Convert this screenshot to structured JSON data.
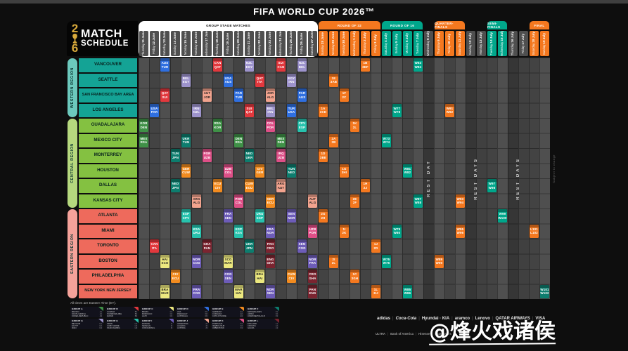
{
  "title": "FIFA WORLD CUP 2026™",
  "logo": {
    "year_top": "2",
    "year_bottom": "6",
    "line1": "MATCH",
    "line2": "SCHEDULE"
  },
  "note": "All times are Eastern Time (ET).",
  "side_note": "Subject to change",
  "watermark": "@烽火戏诸侯",
  "regions": [
    {
      "name": "WESTERN REGION",
      "strip_color": "#6cc9bd",
      "city_color": "#14a395",
      "cities": [
        "VANCOUVER",
        "SEATTLE",
        "SAN FRANCISCO BAY AREA",
        "LOS ANGELES"
      ]
    },
    {
      "name": "CENTRAL REGION",
      "strip_color": "#b6d87e",
      "city_color": "#84c141",
      "cities": [
        "GUADALAJARA",
        "MEXICO CITY",
        "MONTERREY",
        "HOUSTON",
        "DALLAS",
        "KANSAS CITY"
      ]
    },
    {
      "name": "EASTERN REGION",
      "strip_color": "#f5a29a",
      "city_color": "#ee6a5c",
      "cities": [
        "ATLANTA",
        "MIAMI",
        "TORONTO",
        "BOSTON",
        "PHILADELPHIA",
        "NEW YORK NEW JERSEY"
      ]
    }
  ],
  "phases": [
    {
      "label": "GROUP STAGE MATCHES",
      "start": 0,
      "end": 16,
      "bg": "#ffffff",
      "fg": "#111111"
    },
    {
      "label": "ROUND OF 32",
      "start": 17,
      "end": 22,
      "bg": "#f4781f",
      "fg": "#ffffff"
    },
    {
      "label": "ROUND OF 16",
      "start": 23,
      "end": 26,
      "bg": "#00a78b",
      "fg": "#ffffff"
    },
    {
      "label": "QUARTER-FINALS",
      "start": 28,
      "end": 30,
      "bg": "#f4781f",
      "fg": "#ffffff"
    },
    {
      "label": "SEMI-FINALS",
      "start": 33,
      "end": 34,
      "bg": "#00a78b",
      "fg": "#ffffff"
    },
    {
      "label": "FINAL",
      "start": 37,
      "end": 38,
      "bg": "#f4781f",
      "fg": "#ffffff"
    }
  ],
  "columns": [
    {
      "day": "Thursday",
      "date": "11 June",
      "type": "GS"
    },
    {
      "day": "Friday",
      "date": "12 June",
      "type": "GS"
    },
    {
      "day": "Saturday",
      "date": "13 June",
      "type": "GS"
    },
    {
      "day": "Sunday",
      "date": "14 June",
      "type": "GS"
    },
    {
      "day": "Monday",
      "date": "15 June",
      "type": "GS"
    },
    {
      "day": "Tuesday",
      "date": "16 June",
      "type": "GS"
    },
    {
      "day": "Wednesday",
      "date": "17 June",
      "type": "GS"
    },
    {
      "day": "Thursday",
      "date": "18 June",
      "type": "GS"
    },
    {
      "day": "Friday",
      "date": "19 June",
      "type": "GS"
    },
    {
      "day": "Saturday",
      "date": "20 June",
      "type": "GS"
    },
    {
      "day": "Sunday",
      "date": "21 June",
      "type": "GS"
    },
    {
      "day": "Monday",
      "date": "22 June",
      "type": "GS"
    },
    {
      "day": "Tuesday",
      "date": "23 June",
      "type": "GS"
    },
    {
      "day": "Wednesday",
      "date": "24 June",
      "type": "GS"
    },
    {
      "day": "Thursday",
      "date": "25 June",
      "type": "GS"
    },
    {
      "day": "Friday",
      "date": "26 June",
      "type": "GS"
    },
    {
      "day": "Saturday",
      "date": "27 June",
      "type": "GS"
    },
    {
      "day": "Sunday",
      "date": "28 June",
      "type": "R32"
    },
    {
      "day": "Monday",
      "date": "29 June",
      "type": "R32"
    },
    {
      "day": "Tuesday",
      "date": "30 June",
      "type": "R32"
    },
    {
      "day": "Wednesday",
      "date": "1 July",
      "type": "R32"
    },
    {
      "day": "Thursday",
      "date": "2 July",
      "type": "R32"
    },
    {
      "day": "Friday",
      "date": "3 July",
      "type": "R32"
    },
    {
      "day": "Saturday",
      "date": "4 July",
      "type": "R16"
    },
    {
      "day": "Sunday",
      "date": "5 July",
      "type": "R16"
    },
    {
      "day": "Monday",
      "date": "6 July",
      "type": "R16"
    },
    {
      "day": "Tuesday",
      "date": "7 July",
      "type": "R16"
    },
    {
      "day": "Wednesday",
      "date": "8 July",
      "type": "REST"
    },
    {
      "day": "Thursday",
      "date": "9 July",
      "type": "QF"
    },
    {
      "day": "Friday",
      "date": "10 July",
      "type": "QF"
    },
    {
      "day": "Saturday",
      "date": "11 July",
      "type": "QF"
    },
    {
      "day": "Sunday",
      "date": "12 July",
      "type": "REST"
    },
    {
      "day": "Monday",
      "date": "13 July",
      "type": "REST"
    },
    {
      "day": "Tuesday",
      "date": "14 July",
      "type": "SF"
    },
    {
      "day": "Wednesday",
      "date": "15 July",
      "type": "SF"
    },
    {
      "day": "Thursday",
      "date": "16 July",
      "type": "REST"
    },
    {
      "day": "Friday",
      "date": "17 July",
      "type": "REST"
    },
    {
      "day": "Saturday",
      "date": "18 July",
      "type": "FINAL"
    },
    {
      "day": "Sunday",
      "date": "19 July",
      "type": "FINAL"
    }
  ],
  "rest_bands": [
    {
      "start": 27,
      "end": 27,
      "label": "REST DAY"
    },
    {
      "start": 31,
      "end": 32,
      "label": "REST DAYS"
    },
    {
      "start": 35,
      "end": 36,
      "label": "REST DAYS"
    }
  ],
  "group_colors": {
    "A": "#3f9147",
    "B": "#e2383d",
    "C": "#ece87f",
    "D": "#2f6fe0",
    "E": "#f28b1f",
    "F": "#0d7d6e",
    "G": "#9d93cc",
    "H": "#27c2ad",
    "I": "#6d5cb8",
    "J": "#f2a38e",
    "K": "#de4f87",
    "L": "#7b2430"
  },
  "phase_colors": {
    "R32": "#f4781f",
    "R16": "#00a78b",
    "QF": "#f4781f",
    "SF": "#00a78b",
    "3RD": "#f4781f",
    "F": "#b3a534"
  },
  "dark_text_groups": [
    "C",
    "J"
  ],
  "chart_data": {
    "type": "table",
    "title": "FIFA World Cup 2026 Match Schedule",
    "rows": [
      "VANCOUVER",
      "SEATTLE",
      "SAN FRANCISCO BAY AREA",
      "LOS ANGELES",
      "GUADALAJARA",
      "MEXICO CITY",
      "MONTERREY",
      "HOUSTON",
      "DALLAS",
      "KANSAS CITY",
      "ATLANTA",
      "MIAMI",
      "TORONTO",
      "BOSTON",
      "PHILADELPHIA",
      "NEW YORK NEW JERSEY"
    ],
    "matches": [
      [
        0,
        2,
        "D",
        "AUS",
        "TUR"
      ],
      [
        0,
        7,
        "B",
        "CAN",
        "QAT"
      ],
      [
        0,
        10,
        "G",
        "NZL",
        "EGY"
      ],
      [
        0,
        13,
        "B",
        "SUI",
        "CAN"
      ],
      [
        0,
        15,
        "G",
        "NZL",
        "BEL"
      ],
      [
        0,
        21,
        "R32",
        "1B",
        "3EF"
      ],
      [
        0,
        26,
        "R16",
        "W83",
        "W84"
      ],
      [
        1,
        4,
        "G",
        "BEL",
        "EGY"
      ],
      [
        1,
        8,
        "D",
        "USA",
        "AUS"
      ],
      [
        1,
        11,
        "B",
        "QAT",
        "ITA"
      ],
      [
        1,
        14,
        "G",
        "EGY",
        "IRN"
      ],
      [
        1,
        18,
        "R32",
        "1E",
        "3AB"
      ],
      [
        2,
        2,
        "B",
        "QAT",
        "SUI"
      ],
      [
        2,
        6,
        "J",
        "AUT",
        "JOR"
      ],
      [
        2,
        9,
        "D",
        "PAR",
        "TUR"
      ],
      [
        2,
        12,
        "J",
        "JOR",
        "ALG"
      ],
      [
        2,
        15,
        "D",
        "PAR",
        "AUS"
      ],
      [
        2,
        19,
        "R32",
        "1F",
        "2C"
      ],
      [
        3,
        1,
        "D",
        "USA",
        "PAR"
      ],
      [
        3,
        5,
        "G",
        "IRN",
        "NZL"
      ],
      [
        3,
        10,
        "B",
        "SUI",
        "QAT"
      ],
      [
        3,
        12,
        "G",
        "BEL",
        "IRN"
      ],
      [
        3,
        14,
        "D",
        "TUR",
        "USA"
      ],
      [
        3,
        17,
        "R32",
        "1A",
        "3CD"
      ],
      [
        3,
        24,
        "R16",
        "W77",
        "W78"
      ],
      [
        3,
        29,
        "QF",
        "W91",
        "W92"
      ],
      [
        4,
        0,
        "A",
        "KOR",
        "DEN"
      ],
      [
        4,
        7,
        "A",
        "RSA",
        "KOR"
      ],
      [
        4,
        12,
        "K",
        "COL",
        "POR"
      ],
      [
        4,
        15,
        "H",
        "CPV",
        "ESP"
      ],
      [
        4,
        20,
        "R32",
        "1K",
        "2L"
      ],
      [
        5,
        0,
        "A",
        "MEX",
        "RSA"
      ],
      [
        5,
        4,
        "F",
        "UKR",
        "TUN"
      ],
      [
        5,
        9,
        "A",
        "DEN",
        "RSA"
      ],
      [
        5,
        13,
        "A",
        "MEX",
        "DEN"
      ],
      [
        5,
        18,
        "R32",
        "2A",
        "2B"
      ],
      [
        5,
        23,
        "R16",
        "W73",
        "W74"
      ],
      [
        6,
        3,
        "F",
        "TUN",
        "JPN"
      ],
      [
        6,
        6,
        "K",
        "POR",
        "UZB"
      ],
      [
        6,
        10,
        "F",
        "NED",
        "UKR"
      ],
      [
        6,
        13,
        "K",
        "IRQ",
        "UZB"
      ],
      [
        6,
        17,
        "R32",
        "1D",
        "3BE"
      ],
      [
        7,
        4,
        "E",
        "GER",
        "CUW"
      ],
      [
        7,
        8,
        "K",
        "UZB",
        "COL"
      ],
      [
        7,
        11,
        "E",
        "CIV",
        "GER"
      ],
      [
        7,
        14,
        "F",
        "TUN",
        "NED"
      ],
      [
        7,
        19,
        "R32",
        "1G",
        "3HI"
      ],
      [
        7,
        25,
        "R16",
        "W81",
        "W82"
      ],
      [
        8,
        3,
        "F",
        "NED",
        "JPN"
      ],
      [
        8,
        7,
        "E",
        "ECU",
        "CIV"
      ],
      [
        8,
        10,
        "E",
        "CUW",
        "ECU"
      ],
      [
        8,
        13,
        "J",
        "ARG",
        "AUT"
      ],
      [
        8,
        21,
        "R32",
        "1H",
        "2J"
      ],
      [
        8,
        33,
        "SF",
        "W97",
        "W98"
      ],
      [
        9,
        5,
        "J",
        "ARG",
        "ALG"
      ],
      [
        9,
        9,
        "K",
        "POR",
        "COL"
      ],
      [
        9,
        12,
        "E",
        "GER",
        "ECU"
      ],
      [
        9,
        16,
        "J",
        "AUT",
        "ALG"
      ],
      [
        9,
        20,
        "R32",
        "2E",
        "2F"
      ],
      [
        9,
        26,
        "R16",
        "W87",
        "W88"
      ],
      [
        9,
        30,
        "QF",
        "W93",
        "W94"
      ],
      [
        10,
        4,
        "H",
        "ESP",
        "CPV"
      ],
      [
        10,
        8,
        "I",
        "FRA",
        "SEN"
      ],
      [
        10,
        11,
        "H",
        "URU",
        "ESP"
      ],
      [
        10,
        14,
        "I",
        "SEN",
        "NOR"
      ],
      [
        10,
        17,
        "R32",
        "2G",
        "2H"
      ],
      [
        10,
        34,
        "SF",
        "W99",
        "W100"
      ],
      [
        11,
        5,
        "H",
        "KSA",
        "URU"
      ],
      [
        11,
        9,
        "H",
        "ESP",
        "KSA"
      ],
      [
        11,
        12,
        "I",
        "FRA",
        "NOR"
      ],
      [
        11,
        16,
        "K",
        "UZB",
        "POR"
      ],
      [
        11,
        19,
        "R32",
        "1I",
        "2K"
      ],
      [
        11,
        24,
        "R16",
        "W79",
        "W80"
      ],
      [
        11,
        30,
        "QF",
        "W95",
        "W96"
      ],
      [
        11,
        37,
        "3RD",
        "L101",
        "L102"
      ],
      [
        12,
        1,
        "B",
        "CAN",
        "ITA"
      ],
      [
        12,
        6,
        "L",
        "GHA",
        "PAN"
      ],
      [
        12,
        10,
        "F",
        "UKR",
        "JPN"
      ],
      [
        12,
        12,
        "L",
        "PAN",
        "CRO"
      ],
      [
        12,
        15,
        "I",
        "SEN",
        "COD"
      ],
      [
        12,
        22,
        "R32",
        "1J",
        "2D"
      ],
      [
        13,
        2,
        "C",
        "HAI",
        "SCO"
      ],
      [
        13,
        5,
        "I",
        "NOR",
        "COD"
      ],
      [
        13,
        8,
        "C",
        "SCO",
        "MAR"
      ],
      [
        13,
        12,
        "L",
        "ENG",
        "GHA"
      ],
      [
        13,
        16,
        "I",
        "NOR",
        "FRA"
      ],
      [
        13,
        18,
        "R32",
        "2I",
        "2L"
      ],
      [
        13,
        23,
        "R16",
        "W75",
        "W76"
      ],
      [
        13,
        28,
        "QF",
        "W89",
        "W90"
      ],
      [
        14,
        3,
        "E",
        "CIV",
        "ECU"
      ],
      [
        14,
        8,
        "I",
        "COD",
        "SEN"
      ],
      [
        14,
        11,
        "C",
        "BRA",
        "HAI"
      ],
      [
        14,
        14,
        "E",
        "CUW",
        "CIV"
      ],
      [
        14,
        16,
        "L",
        "CRO",
        "GHA"
      ],
      [
        14,
        20,
        "R32",
        "1C",
        "3GH"
      ],
      [
        15,
        2,
        "C",
        "BRA",
        "MAR"
      ],
      [
        15,
        5,
        "I",
        "FRA",
        "COD"
      ],
      [
        15,
        9,
        "C",
        "MAR",
        "HAI"
      ],
      [
        15,
        12,
        "I",
        "NOR",
        "SEN"
      ],
      [
        15,
        16,
        "L",
        "PAN",
        "ENG"
      ],
      [
        15,
        22,
        "R32",
        "1L",
        "3IJ"
      ],
      [
        15,
        25,
        "R16",
        "W85",
        "W86"
      ],
      [
        15,
        38,
        "F",
        "W101",
        "W102"
      ]
    ]
  },
  "groups": [
    {
      "name": "GROUP A",
      "color": "#3f9147",
      "teams": [
        [
          "MEXICO",
          "A1"
        ],
        [
          "SOUTH AFRICA",
          "A2"
        ],
        [
          "KOREA REPUBLIC",
          "A3"
        ],
        [
          "DEN/MKD/CZE/IRL",
          "A4"
        ]
      ]
    },
    {
      "name": "GROUP B",
      "color": "#e2383d",
      "teams": [
        [
          "CANADA",
          "B1"
        ],
        [
          "ITA/NIR/WAL/BIH",
          "B2"
        ],
        [
          "QATAR",
          "B3"
        ],
        [
          "SWITZERLAND",
          "B4"
        ]
      ]
    },
    {
      "name": "GROUP C",
      "color": "#ece87f",
      "teams": [
        [
          "BRAZIL",
          "C1"
        ],
        [
          "MOROCCO",
          "C2"
        ],
        [
          "HAITI",
          "C3"
        ],
        [
          "SCOTLAND",
          "C4"
        ]
      ]
    },
    {
      "name": "GROUP D",
      "color": "#2f6fe0",
      "teams": [
        [
          "USA",
          "D1"
        ],
        [
          "PARAGUAY",
          "D2"
        ],
        [
          "AUSTRALIA",
          "D3"
        ],
        [
          "TUR/ROU/SVK/KOS",
          "D4"
        ]
      ]
    },
    {
      "name": "GROUP E",
      "color": "#f28b1f",
      "teams": [
        [
          "GERMANY",
          "E1"
        ],
        [
          "CURACAO",
          "E2"
        ],
        [
          "COTE D'IVOIRE",
          "E3"
        ],
        [
          "ECUADOR",
          "E4"
        ]
      ]
    },
    {
      "name": "GROUP F",
      "color": "#0d7d6e",
      "teams": [
        [
          "NETHERLANDS",
          "F1"
        ],
        [
          "JAPAN",
          "F2"
        ],
        [
          "UKR/SWE/POL/ALB",
          "F3"
        ],
        [
          "TUNISIA",
          "F4"
        ]
      ]
    },
    {
      "name": "GROUP G",
      "color": "#9d93cc",
      "teams": [
        [
          "BELGIUM",
          "G1"
        ],
        [
          "EGYPT",
          "G2"
        ],
        [
          "IRAN",
          "G3"
        ],
        [
          "NEW ZEALAND",
          "G4"
        ]
      ]
    },
    {
      "name": "GROUP H",
      "color": "#27c2ad",
      "teams": [
        [
          "SPAIN",
          "H1"
        ],
        [
          "CABO VERDE",
          "H2"
        ],
        [
          "SAUDI ARABIA",
          "H3"
        ],
        [
          "URUGUAY",
          "H4"
        ]
      ]
    },
    {
      "name": "GROUP I",
      "color": "#6d5cb8",
      "teams": [
        [
          "FRANCE",
          "I1"
        ],
        [
          "SENEGAL",
          "I2"
        ],
        [
          "COD/JAM/NCL",
          "I3"
        ],
        [
          "NORWAY",
          "I4"
        ]
      ]
    },
    {
      "name": "GROUP J",
      "color": "#f2a38e",
      "teams": [
        [
          "ARGENTINA",
          "J1"
        ],
        [
          "ALGERIA",
          "J2"
        ],
        [
          "AUSTRIA",
          "J3"
        ],
        [
          "JORDAN",
          "J4"
        ]
      ]
    },
    {
      "name": "GROUP K",
      "color": "#de4f87",
      "teams": [
        [
          "PORTUGAL",
          "K1"
        ],
        [
          "IRQ/BOL/SUR",
          "K2"
        ],
        [
          "UZBEKISTAN",
          "K3"
        ],
        [
          "COLOMBIA",
          "K4"
        ]
      ]
    },
    {
      "name": "GROUP L",
      "color": "#7b2430",
      "teams": [
        [
          "ENGLAND",
          "L1"
        ],
        [
          "CROATIA",
          "L2"
        ],
        [
          "GHANA",
          "L3"
        ],
        [
          "PANAMA",
          "L4"
        ]
      ]
    }
  ],
  "sponsors_row1": [
    "adidas",
    "Coca-Cola",
    "Hyundai · KIA",
    "aramco",
    "Lenovo",
    "QATAR AIRWAYS",
    "VISA"
  ],
  "sponsors_row2": [
    "ULTRA",
    "Bank of America",
    "Hisense",
    "McDonald's"
  ]
}
